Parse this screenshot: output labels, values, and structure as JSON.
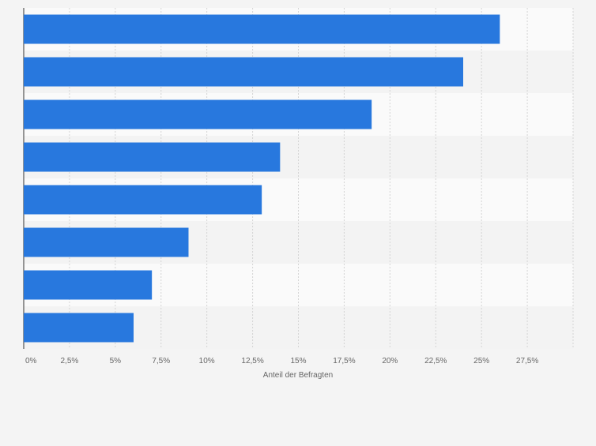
{
  "chart_data": {
    "type": "bar",
    "orientation": "horizontal",
    "categories": [
      "",
      "",
      "",
      "",
      "",
      "",
      "",
      ""
    ],
    "values": [
      26,
      24,
      19,
      14,
      13,
      9,
      7,
      6
    ],
    "xlabel": "Anteil der Befragten",
    "ylabel": "",
    "xlim": [
      0,
      30
    ],
    "x_ticks": [
      0,
      2.5,
      5,
      7.5,
      10,
      12.5,
      15,
      17.5,
      20,
      22.5,
      25,
      27.5
    ],
    "x_tick_labels": [
      "0%",
      "2,5%",
      "5%",
      "7,5%",
      "10%",
      "12,5%",
      "15%",
      "17,5%",
      "20%",
      "22,5%",
      "25%",
      "27,5%"
    ],
    "grid": true,
    "legend": "none",
    "colors": {
      "bar": "#2878de",
      "plot_band_light": "#fafafa",
      "plot_band_dark": "#f3f3f3",
      "page_background": "#f4f4f4",
      "grid": "#d4d4d4",
      "axis": "#333333",
      "tick_text": "#666666"
    }
  }
}
